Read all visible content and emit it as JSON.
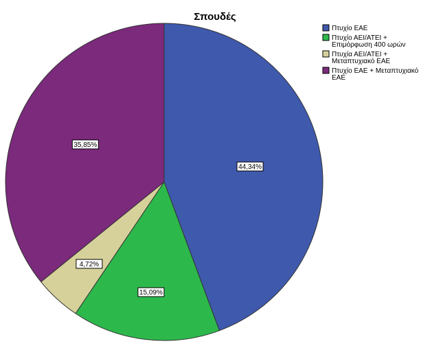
{
  "chart_data": {
    "type": "pie",
    "title": "Σπουδές",
    "slices": [
      {
        "label": "Πτυχίο ΕΑΕ",
        "value": 44.34,
        "display": "44,34%",
        "color": "#3F59AC"
      },
      {
        "label": "Πτυχίο ΑΕΙ/ΑΤΕΙ + Επιμόρφωση 400 ωρών",
        "value": 15.09,
        "display": "15,09%",
        "color": "#2DB84C"
      },
      {
        "label": "Πτυχία ΑΕΙ/ΑΤΕΙ + Μεταπτυχιακό ΕΑΕ",
        "value": 4.72,
        "display": "4,72%",
        "color": "#D6D19B"
      },
      {
        "label": "Πτυχίο ΕΑΕ + Μεταπτυχιακό ΕΑΕ",
        "value": 35.85,
        "display": "35,85%",
        "color": "#7B2A7C"
      }
    ],
    "legend_position": "top-right"
  }
}
